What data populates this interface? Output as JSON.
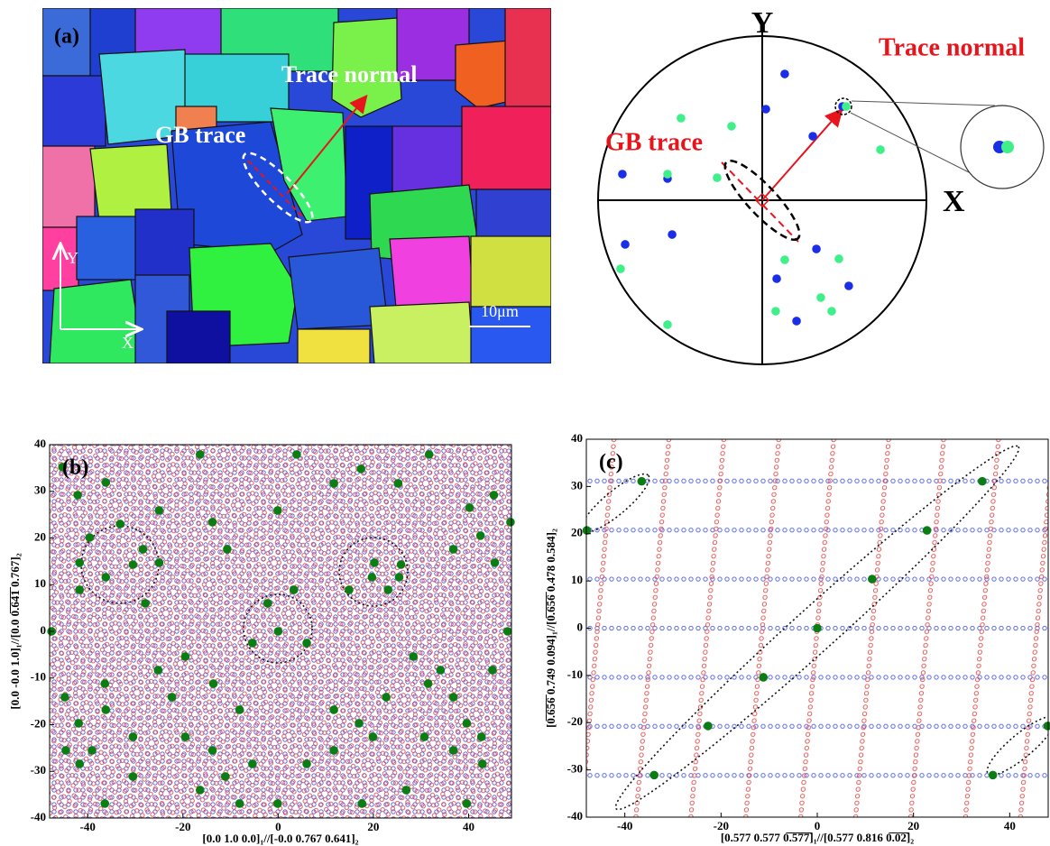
{
  "panel_a": {
    "label": "(a)",
    "trace_normal": "Trace normal",
    "gb_trace": "GB trace",
    "y_axis": "Y",
    "x_axis": "X",
    "scale_bar": "10μm"
  },
  "chart_data": [
    {
      "type": "pole_figure",
      "y_label": "Y",
      "x_label": "X",
      "annotations": [
        "Trace normal",
        "GB trace"
      ],
      "xlim": [
        -1,
        1
      ],
      "ylim": [
        -1,
        1
      ],
      "series": [
        {
          "color": "#1a2ee8",
          "x": [
            0.137,
            0.022,
            0.308,
            -0.852,
            -0.577,
            0.489,
            -0.835,
            -0.549,
            0.33,
            0.527,
            0.088,
            0.209
          ],
          "values": [
            0.769,
            0.555,
            0.39,
            0.159,
            0.132,
            0.571,
            -0.269,
            -0.209,
            -0.297,
            -0.522,
            -0.478,
            -0.736
          ]
        },
        {
          "color": "#3ff08a",
          "x": [
            -0.495,
            -0.187,
            0.511,
            0.72,
            -0.577,
            -0.275,
            -0.863,
            -0.577,
            0.137,
            0.467,
            0.357,
            0.082,
            0.423
          ],
          "values": [
            0.5,
            0.451,
            0.571,
            0.308,
            0.159,
            0.137,
            -0.418,
            -0.758,
            -0.363,
            -0.357,
            -0.593,
            -0.676,
            -0.676
          ]
        }
      ]
    },
    {
      "type": "scatter",
      "panel_label": "(b)",
      "x_label": "[0.0 1.0 0.0]₁//[-0.0 0.767 0.641]₂",
      "y_label": "[0.0 -0.0 1.0]₁//[0.0 0̅.̅6̅4̅1̅ 0.767]₂",
      "xlim": [
        -48,
        49
      ],
      "ylim": [
        -40,
        40
      ],
      "xticks": [
        -40,
        -20,
        0,
        20,
        40
      ],
      "yticks": [
        -40,
        -30,
        -20,
        -10,
        0,
        10,
        20,
        30,
        40
      ],
      "series": [
        {
          "color": "#0b7d12",
          "x": [
            -45.3,
            -42.1,
            -36.2,
            -16.4,
            3.9,
            17.4,
            31.7,
            11.7,
            25.2,
            45.3,
            -13.8,
            -0.1,
            40.2,
            48.8,
            -25.0,
            -39.6,
            -33.2,
            36.8,
            42.5,
            -28.4,
            -10.7,
            -41.7,
            -30.5,
            -25.0,
            20.2,
            25.8,
            45.5,
            -36.2,
            -41.7,
            -27.9,
            -2.2,
            3.3,
            14.9,
            23.1,
            25.4,
            19.7,
            -47.6,
            0,
            48.2,
            -5.4,
            6.0,
            -19.5,
            -25.2,
            28.4,
            34.1,
            -44.8,
            -36.4,
            -22.3,
            -13.6,
            22.7,
            36.8,
            31.5,
            45.0,
            -41.9,
            -36.2,
            -8.1,
            11.7,
            17.0,
            39.6,
            -30.5,
            -13.8,
            -19.5,
            19.9,
            30.7,
            -44.6,
            -39.1,
            36.8,
            42.7,
            -41.7,
            -5.4,
            6.0,
            11.7,
            -30.5,
            -11.1,
            -16.4,
            42.9,
            -36.4,
            -0.1,
            39.6,
            -8.1,
            17.6,
            26.9
          ],
          "values": [
            35.2,
            29.2,
            31.9,
            37.9,
            37.9,
            34.8,
            37.9,
            31.7,
            31.7,
            29.2,
            23.4,
            25.9,
            26.5,
            23.4,
            25.9,
            20.1,
            23.0,
            17.6,
            20.5,
            17.6,
            17.6,
            14.7,
            14.3,
            14.7,
            14.7,
            14.3,
            14.7,
            11.6,
            8.9,
            6.0,
            6.0,
            8.9,
            8.9,
            8.9,
            11.6,
            11.6,
            0,
            0,
            0,
            -2.5,
            -2.5,
            -5.4,
            -8.3,
            -5.4,
            -8.3,
            -14.1,
            -11.2,
            -14.1,
            -11.2,
            -14.1,
            -14.1,
            -11.2,
            -8.3,
            -19.7,
            -16.8,
            -16.8,
            -16.8,
            -19.7,
            -19.7,
            -22.6,
            -25.5,
            -22.6,
            -22.6,
            -22.6,
            -25.5,
            -25.5,
            -25.5,
            -22.6,
            -28.4,
            -28.4,
            -28.4,
            -25.5,
            -31.1,
            -31.1,
            -34.0,
            -28.4,
            -36.9,
            -36.9,
            -36.9,
            -36.9,
            -36.9,
            -34.0
          ]
        }
      ]
    },
    {
      "type": "scatter",
      "panel_label": "(c)",
      "x_label": "[0.577 0.577 0̅.̅5̅7̅7̅]₁//[0.577 0.816 0̅.̅0̅2̅]₂",
      "y_label": "[0̅.̅6̅5̅6̅ 0.749 0.094]₁//[0̅.̅6̅5̅6̅ 0.478 0.584]₂",
      "xlim": [
        -48,
        48
      ],
      "ylim": [
        -40,
        40
      ],
      "xticks": [
        -40,
        -20,
        0,
        20,
        40
      ],
      "yticks": [
        -40,
        -30,
        -20,
        -10,
        0,
        10,
        20,
        30,
        40
      ],
      "series": [
        {
          "color": "#0b7d12",
          "x": [
            -36.5,
            -47.9,
            34.3,
            22.8,
            11.4,
            0,
            -11.2,
            -22.7,
            -33.9,
            47.9,
            36.5
          ],
          "values": [
            31.1,
            20.7,
            31.1,
            20.7,
            10.4,
            0,
            -10.4,
            -20.7,
            -31.1,
            -20.7,
            -31.1
          ]
        }
      ]
    }
  ]
}
